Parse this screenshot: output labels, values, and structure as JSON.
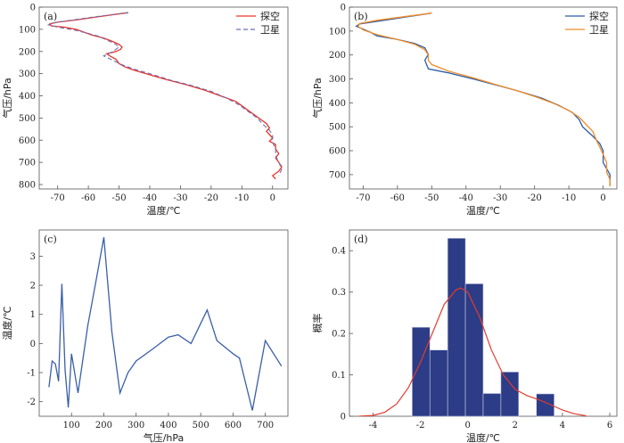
{
  "chart_data": [
    {
      "panel": "(a)",
      "type": "line",
      "xlabel": "温度/℃",
      "ylabel": "气压/hPa",
      "xlim": [
        -76,
        5
      ],
      "ylim": [
        0,
        820
      ],
      "y_inverted": true,
      "xticks": [
        -70,
        -60,
        -50,
        -40,
        -30,
        -20,
        -10,
        0
      ],
      "yticks": [
        0,
        100,
        200,
        300,
        400,
        500,
        600,
        700,
        800
      ],
      "legend": "top-right",
      "series": [
        {
          "name": "探空",
          "color": "#e8332a",
          "dash": "solid",
          "points": [
            [
              -47,
              25
            ],
            [
              -52,
              34
            ],
            [
              -58,
              46
            ],
            [
              -64,
              58
            ],
            [
              -70,
              68
            ],
            [
              -72.5,
              75
            ],
            [
              -72,
              85
            ],
            [
              -68,
              90
            ],
            [
              -64,
              100
            ],
            [
              -62,
              110
            ],
            [
              -59,
              125
            ],
            [
              -55,
              140
            ],
            [
              -52,
              155
            ],
            [
              -50,
              168
            ],
            [
              -49,
              180
            ],
            [
              -49.5,
              190
            ],
            [
              -51,
              200
            ],
            [
              -54,
              210
            ],
            [
              -53,
              220
            ],
            [
              -51,
              235
            ],
            [
              -50,
              255
            ],
            [
              -48,
              270
            ],
            [
              -45,
              285
            ],
            [
              -40,
              305
            ],
            [
              -35,
              325
            ],
            [
              -28,
              350
            ],
            [
              -22,
              375
            ],
            [
              -17,
              400
            ],
            [
              -12,
              425
            ],
            [
              -10,
              445
            ],
            [
              -8,
              465
            ],
            [
              -6,
              485
            ],
            [
              -4,
              505
            ],
            [
              -2,
              525
            ],
            [
              -1,
              545
            ],
            [
              -2,
              560
            ],
            [
              -1,
              575
            ],
            [
              0,
              590
            ],
            [
              -1,
              605
            ],
            [
              1,
              620
            ],
            [
              1,
              640
            ],
            [
              2,
              660
            ],
            [
              1,
              680
            ],
            [
              2,
              700
            ],
            [
              3,
              720
            ],
            [
              2,
              740
            ],
            [
              0,
              760
            ],
            [
              1,
              775
            ]
          ]
        },
        {
          "name": "卫星",
          "color": "#6a6fb8",
          "dash": "dashed",
          "points": [
            [
              -47,
              25
            ],
            [
              -53,
              35
            ],
            [
              -60,
              48
            ],
            [
              -67,
              62
            ],
            [
              -72,
              72
            ],
            [
              -73,
              80
            ],
            [
              -70,
              90
            ],
            [
              -65,
              102
            ],
            [
              -61,
              115
            ],
            [
              -57,
              130
            ],
            [
              -54,
              148
            ],
            [
              -51,
              168
            ],
            [
              -50,
              180
            ],
            [
              -52,
              200
            ],
            [
              -55,
              220
            ],
            [
              -52,
              240
            ],
            [
              -49,
              260
            ],
            [
              -45,
              280
            ],
            [
              -40,
              300
            ],
            [
              -33,
              330
            ],
            [
              -26,
              355
            ],
            [
              -20,
              380
            ],
            [
              -15,
              410
            ],
            [
              -11,
              440
            ],
            [
              -8,
              470
            ],
            [
              -5,
              500
            ],
            [
              -3,
              530
            ],
            [
              -1,
              555
            ],
            [
              0,
              580
            ],
            [
              0,
              610
            ],
            [
              1,
              640
            ],
            [
              1,
              670
            ],
            [
              2,
              700
            ],
            [
              3,
              730
            ],
            [
              2,
              760
            ]
          ]
        }
      ]
    },
    {
      "panel": "(b)",
      "type": "line",
      "xlabel": "温度/℃",
      "ylabel": "气压/hPa",
      "xlim": [
        -74,
        4
      ],
      "ylim": [
        0,
        760
      ],
      "y_inverted": true,
      "xticks": [
        -70,
        -60,
        -50,
        -40,
        -30,
        -20,
        -10,
        0
      ],
      "yticks": [
        0,
        100,
        200,
        300,
        400,
        500,
        600,
        700
      ],
      "legend": "top-right",
      "series": [
        {
          "name": "探空",
          "color": "#2b5ca8",
          "dash": "solid",
          "points": [
            [
              -50,
              25
            ],
            [
              -57,
              40
            ],
            [
              -64,
              55
            ],
            [
              -71,
              70
            ],
            [
              -72,
              80
            ],
            [
              -70,
              92
            ],
            [
              -68,
              104
            ],
            [
              -66,
              120
            ],
            [
              -60,
              135
            ],
            [
              -55,
              152
            ],
            [
              -52,
              170
            ],
            [
              -51,
              198
            ],
            [
              -52,
              222
            ],
            [
              -51,
              258
            ],
            [
              -45,
              275
            ],
            [
              -38,
              300
            ],
            [
              -30,
              330
            ],
            [
              -25,
              350
            ],
            [
              -18,
              380
            ],
            [
              -13,
              410
            ],
            [
              -9,
              440
            ],
            [
              -7,
              470
            ],
            [
              -6,
              500
            ],
            [
              -3,
              540
            ],
            [
              -1,
              570
            ],
            [
              0,
              600
            ],
            [
              0,
              650
            ],
            [
              2,
              700
            ],
            [
              2,
              745
            ]
          ]
        },
        {
          "name": "卫星",
          "color": "#f28c28",
          "dash": "solid",
          "points": [
            [
              -50,
              25
            ],
            [
              -58,
              40
            ],
            [
              -66,
              55
            ],
            [
              -71,
              68
            ],
            [
              -71.5,
              80
            ],
            [
              -70,
              95
            ],
            [
              -66,
              115
            ],
            [
              -60,
              135
            ],
            [
              -55,
              155
            ],
            [
              -52,
              178
            ],
            [
              -51,
              200
            ],
            [
              -51,
              222
            ],
            [
              -50,
              240
            ],
            [
              -45,
              268
            ],
            [
              -38,
              295
            ],
            [
              -31,
              325
            ],
            [
              -25,
              350
            ],
            [
              -19,
              378
            ],
            [
              -14,
              405
            ],
            [
              -10,
              432
            ],
            [
              -7,
              460
            ],
            [
              -5,
              490
            ],
            [
              -3,
              520
            ],
            [
              -2,
              555
            ],
            [
              -1,
              585
            ],
            [
              0,
              615
            ],
            [
              1,
              650
            ],
            [
              1,
              690
            ],
            [
              2,
              720
            ],
            [
              2,
              750
            ]
          ]
        }
      ]
    },
    {
      "panel": "(c)",
      "type": "line",
      "xlabel": "气压/hPa",
      "ylabel": "温度/℃",
      "xlim": [
        0,
        770
      ],
      "ylim": [
        -2.5,
        3.9
      ],
      "xticks": [
        100,
        200,
        300,
        400,
        500,
        600,
        700
      ],
      "yticks": [
        -2,
        -1,
        0,
        1,
        2,
        3
      ],
      "series": [
        {
          "name": "",
          "color": "#3a5fa8",
          "x": [
            30,
            40,
            50,
            60,
            70,
            80,
            90,
            100,
            120,
            150,
            175,
            200,
            225,
            250,
            275,
            300,
            350,
            400,
            430,
            470,
            520,
            550,
            600,
            620,
            660,
            700,
            750
          ],
          "values": [
            -1.5,
            -0.6,
            -0.7,
            -1.3,
            2.05,
            -0.9,
            -2.2,
            -0.35,
            -1.7,
            0.6,
            2.1,
            3.65,
            0.4,
            -1.7,
            -1.0,
            -0.6,
            -0.2,
            0.22,
            0.3,
            0.0,
            1.15,
            0.1,
            -0.35,
            -0.5,
            -2.3,
            0.1,
            -0.78
          ]
        }
      ]
    },
    {
      "panel": "(d)",
      "type": "bar",
      "xlabel": "温度/℃",
      "ylabel": "概率",
      "xlim": [
        -5,
        6.3
      ],
      "ylim": [
        0,
        0.45
      ],
      "xticks": [
        -4,
        -2,
        0,
        2,
        4,
        6
      ],
      "yticks": [
        0,
        0.1,
        0.2,
        0.3,
        0.4
      ],
      "bins": [
        {
          "from": -2.35,
          "to": -1.6,
          "value": 0.215
        },
        {
          "from": -1.6,
          "to": -0.85,
          "value": 0.16
        },
        {
          "from": -0.85,
          "to": -0.1,
          "value": 0.43
        },
        {
          "from": -0.1,
          "to": 0.65,
          "value": 0.32
        },
        {
          "from": 0.65,
          "to": 1.4,
          "value": 0.055
        },
        {
          "from": 1.4,
          "to": 2.15,
          "value": 0.107
        },
        {
          "from": 2.9,
          "to": 3.65,
          "value": 0.054
        }
      ],
      "bar_color": "#2c3c86",
      "curve_color": "#e23b2f",
      "curve": {
        "x": [
          -4.6,
          -4,
          -3.5,
          -3,
          -2.5,
          -2,
          -1.5,
          -1,
          -0.5,
          -0.3,
          0,
          0.5,
          1,
          1.5,
          2,
          2.5,
          3,
          3.5,
          4,
          4.5,
          5
        ],
        "values": [
          0.0,
          0.002,
          0.01,
          0.03,
          0.07,
          0.13,
          0.2,
          0.27,
          0.305,
          0.31,
          0.3,
          0.24,
          0.16,
          0.1,
          0.065,
          0.05,
          0.04,
          0.028,
          0.015,
          0.006,
          0.001
        ]
      }
    }
  ]
}
